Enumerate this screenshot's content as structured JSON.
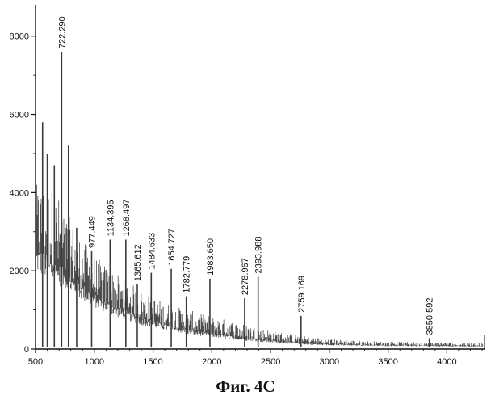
{
  "figure": {
    "caption": "Фиг. 4C"
  },
  "colors": {
    "trace": "#3a3a3a",
    "axis": "#111111"
  },
  "chart_data": {
    "type": "line",
    "title": "",
    "xlabel": "",
    "ylabel": "",
    "xlim": [
      500,
      4320
    ],
    "ylim": [
      0,
      8800
    ],
    "x_ticks": [
      500,
      1000,
      1500,
      2000,
      2500,
      3000,
      3500,
      4000
    ],
    "y_ticks": [
      0,
      2000,
      4000,
      6000,
      8000
    ],
    "grid": false,
    "legend": "none",
    "baseline_envelope": {
      "x": [
        500,
        600,
        700,
        800,
        900,
        1000,
        1200,
        1400,
        1600,
        1800,
        2000,
        2200,
        2400,
        2600,
        2800,
        3000,
        3400,
        3800,
        4300
      ],
      "lower": [
        2300,
        2100,
        1900,
        1650,
        1450,
        1250,
        950,
        720,
        560,
        440,
        350,
        280,
        220,
        170,
        130,
        110,
        90,
        80,
        70
      ],
      "upper": [
        4200,
        4300,
        3900,
        3300,
        2800,
        2400,
        1900,
        1500,
        1200,
        1000,
        850,
        700,
        560,
        430,
        330,
        260,
        200,
        180,
        160
      ]
    },
    "peaks": [
      {
        "x": 560,
        "y": 5800
      },
      {
        "x": 600,
        "y": 5000
      },
      {
        "x": 660,
        "y": 4700
      },
      {
        "x": 722.29,
        "y": 7600,
        "label": "722.290"
      },
      {
        "x": 780,
        "y": 5200
      },
      {
        "x": 850,
        "y": 3100
      },
      {
        "x": 977.449,
        "y": 2500,
        "label": "977.449"
      },
      {
        "x": 1134.395,
        "y": 2800,
        "label": "1134.395"
      },
      {
        "x": 1268.497,
        "y": 2800,
        "label": "1268.497"
      },
      {
        "x": 1365.612,
        "y": 1650,
        "label": "1365.612"
      },
      {
        "x": 1484.633,
        "y": 1950,
        "label": "1484.633"
      },
      {
        "x": 1654.727,
        "y": 2050,
        "label": "1654.727"
      },
      {
        "x": 1782.779,
        "y": 1350,
        "label": "1782.779"
      },
      {
        "x": 1983.65,
        "y": 1800,
        "label": "1983.650"
      },
      {
        "x": 2278.967,
        "y": 1300,
        "label": "2278.967"
      },
      {
        "x": 2393.988,
        "y": 1850,
        "label": "2393.988"
      },
      {
        "x": 2759.169,
        "y": 850,
        "label": "2759.169"
      },
      {
        "x": 3850.592,
        "y": 280,
        "label": "3850.592"
      }
    ]
  }
}
